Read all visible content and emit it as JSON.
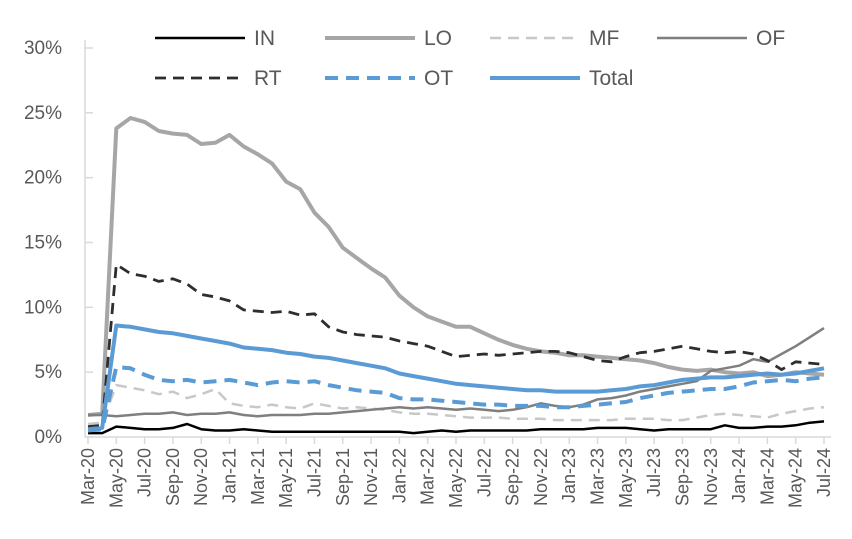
{
  "chart_data": {
    "type": "line",
    "title": "",
    "xlabel": "",
    "ylabel": "",
    "ylim": [
      0,
      30
    ],
    "y_tick_labels": [
      "0%",
      "5%",
      "10%",
      "15%",
      "20%",
      "25%",
      "30%"
    ],
    "grid": false,
    "legend_position": "top",
    "legend_rows": [
      [
        "IN",
        "LO",
        "MF",
        "OF"
      ],
      [
        "RT",
        "OT",
        "Total"
      ]
    ],
    "x_tick_labels": [
      "Mar-20",
      "May-20",
      "Jul-20",
      "Sep-20",
      "Nov-20",
      "Jan-21",
      "Mar-21",
      "May-21",
      "Jul-21",
      "Sep-21",
      "Nov-21",
      "Jan-22",
      "Mar-22",
      "May-22",
      "Jul-22",
      "Sep-22",
      "Nov-22",
      "Jan-23",
      "Mar-23",
      "May-23",
      "Jul-23",
      "Sep-23",
      "Nov-23",
      "Jan-24",
      "Mar-24",
      "May-24",
      "Jul-24"
    ],
    "x": [
      "Mar-20",
      "Apr-20",
      "May-20",
      "Jun-20",
      "Jul-20",
      "Aug-20",
      "Sep-20",
      "Oct-20",
      "Nov-20",
      "Dec-20",
      "Jan-21",
      "Feb-21",
      "Mar-21",
      "Apr-21",
      "May-21",
      "Jun-21",
      "Jul-21",
      "Aug-21",
      "Sep-21",
      "Oct-21",
      "Nov-21",
      "Dec-21",
      "Jan-22",
      "Feb-22",
      "Mar-22",
      "Apr-22",
      "May-22",
      "Jun-22",
      "Jul-22",
      "Aug-22",
      "Sep-22",
      "Oct-22",
      "Nov-22",
      "Dec-22",
      "Jan-23",
      "Feb-23",
      "Mar-23",
      "Apr-23",
      "May-23",
      "Jun-23",
      "Jul-23",
      "Aug-23",
      "Sep-23",
      "Oct-23",
      "Nov-23",
      "Dec-23",
      "Jan-24",
      "Feb-24",
      "Mar-24",
      "Apr-24",
      "May-24",
      "Jun-24",
      "Jul-24"
    ],
    "series": [
      {
        "name": "IN",
        "color": "#000000",
        "dashed": false,
        "width": 2.5,
        "values": [
          0.3,
          0.3,
          0.8,
          0.7,
          0.6,
          0.6,
          0.7,
          1.0,
          0.6,
          0.5,
          0.5,
          0.6,
          0.5,
          0.4,
          0.4,
          0.4,
          0.4,
          0.4,
          0.4,
          0.4,
          0.4,
          0.4,
          0.4,
          0.3,
          0.4,
          0.5,
          0.4,
          0.5,
          0.5,
          0.5,
          0.5,
          0.5,
          0.6,
          0.6,
          0.6,
          0.6,
          0.7,
          0.7,
          0.7,
          0.6,
          0.5,
          0.6,
          0.6,
          0.6,
          0.6,
          0.9,
          0.7,
          0.7,
          0.8,
          0.8,
          0.9,
          1.1,
          1.2
        ]
      },
      {
        "name": "LO",
        "color": "#A6A6A6",
        "dashed": false,
        "width": 4,
        "values": [
          1.7,
          1.8,
          23.8,
          24.6,
          24.3,
          23.6,
          23.4,
          23.3,
          22.6,
          22.7,
          23.3,
          22.4,
          21.8,
          21.1,
          19.7,
          19.1,
          17.3,
          16.2,
          14.6,
          13.8,
          13.0,
          12.3,
          10.9,
          10.0,
          9.3,
          8.9,
          8.5,
          8.5,
          8.0,
          7.5,
          7.1,
          6.8,
          6.6,
          6.5,
          6.3,
          6.3,
          6.2,
          6.1,
          6.0,
          5.9,
          5.7,
          5.4,
          5.2,
          5.1,
          5.2,
          5.0,
          4.9,
          5.0,
          4.7,
          4.8,
          5.0,
          4.9,
          4.8
        ]
      },
      {
        "name": "MF",
        "color": "#C8C8C8",
        "dashed": true,
        "width": 2.5,
        "values": [
          1.0,
          1.1,
          4.0,
          3.8,
          3.6,
          3.3,
          3.5,
          3.0,
          3.3,
          3.7,
          2.6,
          2.4,
          2.3,
          2.5,
          2.3,
          2.2,
          2.6,
          2.4,
          2.2,
          2.3,
          2.2,
          2.1,
          1.9,
          1.8,
          1.8,
          1.7,
          1.6,
          1.5,
          1.5,
          1.5,
          1.4,
          1.4,
          1.4,
          1.3,
          1.3,
          1.3,
          1.3,
          1.3,
          1.4,
          1.4,
          1.4,
          1.3,
          1.3,
          1.5,
          1.7,
          1.8,
          1.7,
          1.6,
          1.5,
          1.8,
          2.0,
          2.2,
          2.3
        ]
      },
      {
        "name": "OF",
        "color": "#7F7F7F",
        "dashed": false,
        "width": 2.5,
        "values": [
          1.7,
          1.7,
          1.6,
          1.7,
          1.8,
          1.8,
          1.9,
          1.7,
          1.8,
          1.8,
          1.9,
          1.7,
          1.6,
          1.7,
          1.7,
          1.7,
          1.8,
          1.8,
          1.9,
          2.0,
          2.1,
          2.2,
          2.3,
          2.2,
          2.3,
          2.2,
          2.1,
          2.2,
          2.1,
          2.0,
          2.1,
          2.3,
          2.6,
          2.4,
          2.3,
          2.5,
          2.9,
          3.0,
          3.2,
          3.5,
          3.7,
          3.9,
          4.1,
          4.3,
          5.1,
          5.3,
          5.5,
          6.0,
          5.8,
          6.4,
          7.0,
          7.7,
          8.4
        ]
      },
      {
        "name": "RT",
        "color": "#2E2E2E",
        "dashed": true,
        "width": 2.8,
        "values": [
          0.8,
          0.9,
          13.3,
          12.6,
          12.4,
          12.0,
          12.2,
          11.8,
          11.0,
          10.8,
          10.5,
          9.8,
          9.7,
          9.6,
          9.7,
          9.4,
          9.5,
          8.5,
          8.1,
          7.9,
          7.8,
          7.7,
          7.4,
          7.2,
          7.0,
          6.6,
          6.2,
          6.3,
          6.4,
          6.3,
          6.4,
          6.5,
          6.6,
          6.6,
          6.5,
          6.2,
          5.9,
          5.8,
          6.2,
          6.5,
          6.6,
          6.8,
          7.0,
          6.8,
          6.6,
          6.5,
          6.6,
          6.4,
          5.9,
          5.2,
          5.8,
          5.7,
          5.6
        ]
      },
      {
        "name": "OT",
        "color": "#5B9BD5",
        "dashed": true,
        "width": 4,
        "values": [
          0.5,
          0.6,
          5.4,
          5.3,
          4.8,
          4.4,
          4.3,
          4.4,
          4.2,
          4.3,
          4.4,
          4.2,
          4.0,
          4.2,
          4.3,
          4.2,
          4.3,
          4.0,
          3.8,
          3.6,
          3.5,
          3.4,
          3.0,
          2.9,
          2.9,
          2.8,
          2.7,
          2.6,
          2.5,
          2.5,
          2.4,
          2.4,
          2.4,
          2.3,
          2.3,
          2.4,
          2.5,
          2.6,
          2.7,
          3.0,
          3.2,
          3.4,
          3.5,
          3.6,
          3.7,
          3.7,
          3.9,
          4.2,
          4.3,
          4.4,
          4.3,
          4.5,
          4.6
        ]
      },
      {
        "name": "Total",
        "color": "#5B9BD5",
        "dashed": false,
        "width": 4,
        "values": [
          0.6,
          0.7,
          8.6,
          8.5,
          8.3,
          8.1,
          8.0,
          7.8,
          7.6,
          7.4,
          7.2,
          6.9,
          6.8,
          6.7,
          6.5,
          6.4,
          6.2,
          6.1,
          5.9,
          5.7,
          5.5,
          5.3,
          4.9,
          4.7,
          4.5,
          4.3,
          4.1,
          4.0,
          3.9,
          3.8,
          3.7,
          3.6,
          3.6,
          3.5,
          3.5,
          3.5,
          3.5,
          3.6,
          3.7,
          3.9,
          4.0,
          4.2,
          4.4,
          4.5,
          4.6,
          4.6,
          4.7,
          4.8,
          4.9,
          4.8,
          4.9,
          5.1,
          5.3
        ]
      }
    ],
    "colors": {
      "axis_line": "#D9D9D9",
      "tick_label_text": "#595959",
      "legend_text": "#595959",
      "background": "#FFFFFF",
      "accent_blue": "#5B9BD5"
    }
  }
}
